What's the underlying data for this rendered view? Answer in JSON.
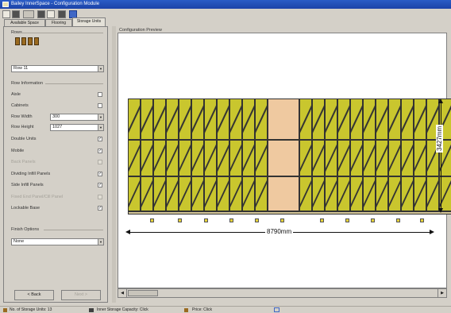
{
  "window": {
    "title": "Bailey InnerSpace - Configuration Module"
  },
  "tabs": [
    {
      "label": "Available Space",
      "active": false
    },
    {
      "label": "Flooring",
      "active": false
    },
    {
      "label": "Storage Units",
      "active": true
    }
  ],
  "left": {
    "rows_heading": "Rows",
    "row_select": "Row 11",
    "row_info_heading": "Row Information",
    "aisle_label": "Aisle",
    "cabinets_label": "Cabinets",
    "row_width_label": "Row Width",
    "row_width_value": "300",
    "row_height_label": "Row Height",
    "row_height_value": "1027",
    "options": [
      {
        "label": "Double Units",
        "checked": true,
        "enabled": true
      },
      {
        "label": "Mobile",
        "checked": true,
        "enabled": true
      },
      {
        "label": "Back Panels",
        "checked": false,
        "enabled": false
      },
      {
        "label": "Dividing Infill Panels",
        "checked": true,
        "enabled": true
      },
      {
        "label": "Side Infill Panels",
        "checked": true,
        "enabled": true
      },
      {
        "label": "Fixed End Panel/Cill Panel",
        "checked": false,
        "enabled": false
      },
      {
        "label": "Lockable Base",
        "checked": true,
        "enabled": true
      }
    ],
    "finish_heading": "Finish Options",
    "finish_value": "None",
    "back_label": "< Back",
    "next_label": "Next >"
  },
  "preview": {
    "header": "Configuration Preview",
    "width_dim": "8790mm",
    "height_dim": "3427mm"
  },
  "status": [
    "No. of Storage Units: 13",
    "Inner Storage Capacity: Click",
    "Price: Click"
  ],
  "colors": {
    "unit_fill": "#c9c62e",
    "gap_fill": "#efc9a0",
    "titlebar": "#1c43a8"
  }
}
